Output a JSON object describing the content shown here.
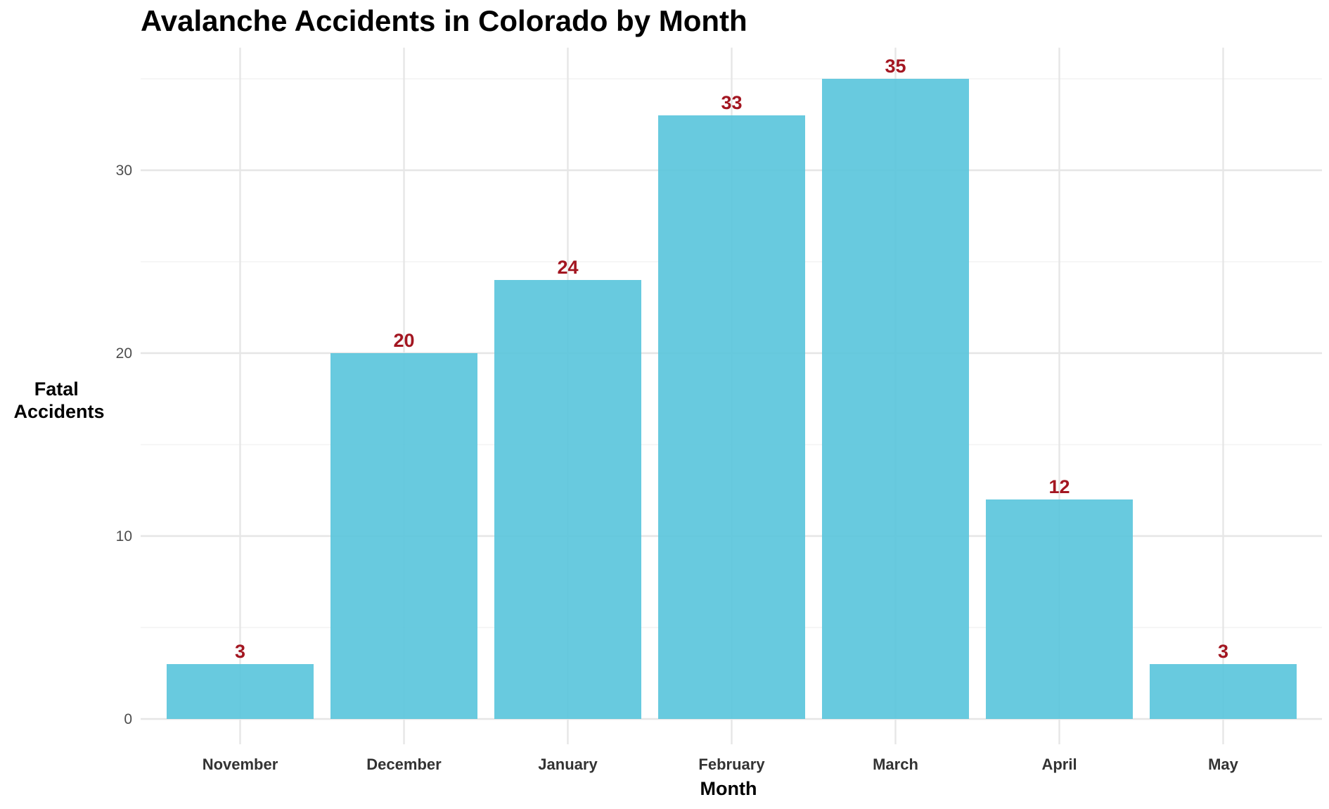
{
  "chart_data": {
    "type": "bar",
    "title": "Avalanche Accidents in Colorado by Month",
    "xlabel": "Month",
    "ylabel_lines": [
      "Fatal",
      "Accidents"
    ],
    "categories": [
      "November",
      "December",
      "January",
      "February",
      "March",
      "April",
      "May"
    ],
    "values": [
      3,
      20,
      24,
      33,
      35,
      12,
      3
    ],
    "ylim": [
      0,
      36.7
    ],
    "yticks": [
      0,
      10,
      20,
      30
    ],
    "grid": true,
    "bar_color": "#5bc6dc",
    "label_color": "#a31621",
    "grid_major_color": "#e6e6e6",
    "grid_minor_color": "#f0f0f0"
  }
}
